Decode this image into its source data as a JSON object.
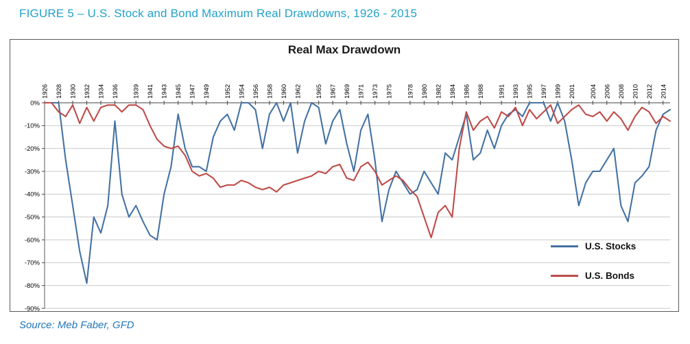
{
  "figure": {
    "caption": "FIGURE 5 – U.S. Stock and Bond Maximum Real Drawdowns, 1926 - 2015"
  },
  "source": {
    "text": "Source: Meb Faber, GFD"
  },
  "chart": {
    "title": "Real Max Drawdown"
  },
  "chart_data": {
    "type": "line",
    "title": "Real Max Drawdown",
    "xlabel": "",
    "ylabel": "",
    "x_range": [
      1926,
      2015
    ],
    "y_range": [
      -90,
      0
    ],
    "grid": "horizontal",
    "legend_position": "inside-lower-right",
    "y_tick_labels": [
      "0%",
      "-10%",
      "-20%",
      "-30%",
      "-40%",
      "-50%",
      "-60%",
      "-70%",
      "-80%",
      "-90%"
    ],
    "y_tick_values": [
      0,
      -10,
      -20,
      -30,
      -40,
      -50,
      -60,
      -70,
      -80,
      -90
    ],
    "x_tick_years": [
      1926,
      1928,
      1930,
      1932,
      1934,
      1936,
      1939,
      1941,
      1943,
      1945,
      1947,
      1949,
      1952,
      1954,
      1956,
      1958,
      1960,
      1962,
      1965,
      1967,
      1969,
      1971,
      1973,
      1975,
      1978,
      1980,
      1982,
      1984,
      1986,
      1988,
      1991,
      1993,
      1995,
      1997,
      1999,
      2001,
      2004,
      2006,
      2008,
      2010,
      2012,
      2014
    ],
    "years": [
      1926,
      1927,
      1928,
      1929,
      1930,
      1931,
      1932,
      1933,
      1934,
      1935,
      1936,
      1937,
      1938,
      1939,
      1940,
      1941,
      1942,
      1943,
      1944,
      1945,
      1946,
      1947,
      1948,
      1949,
      1950,
      1951,
      1952,
      1953,
      1954,
      1955,
      1956,
      1957,
      1958,
      1959,
      1960,
      1961,
      1962,
      1963,
      1964,
      1965,
      1966,
      1967,
      1968,
      1969,
      1970,
      1971,
      1972,
      1973,
      1974,
      1975,
      1976,
      1977,
      1978,
      1979,
      1980,
      1981,
      1982,
      1983,
      1984,
      1985,
      1986,
      1987,
      1988,
      1989,
      1990,
      1991,
      1992,
      1993,
      1994,
      1995,
      1996,
      1997,
      1998,
      1999,
      2000,
      2001,
      2002,
      2003,
      2004,
      2005,
      2006,
      2007,
      2008,
      2009,
      2010,
      2011,
      2012,
      2013,
      2014,
      2015
    ],
    "series": [
      {
        "name": "U.S. Stocks",
        "color": "#4472A4",
        "values": [
          0,
          0,
          0,
          -25,
          -45,
          -65,
          -79,
          -50,
          -57,
          -45,
          -8,
          -40,
          -50,
          -45,
          -52,
          -58,
          -60,
          -40,
          -28,
          -5,
          -20,
          -28,
          -28,
          -30,
          -15,
          -8,
          -5,
          -12,
          0,
          0,
          -3,
          -20,
          -5,
          0,
          -8,
          0,
          -22,
          -8,
          0,
          -2,
          -18,
          -8,
          -3,
          -18,
          -30,
          -12,
          -5,
          -25,
          -52,
          -38,
          -30,
          -35,
          -40,
          -38,
          -30,
          -35,
          -40,
          -22,
          -25,
          -15,
          -5,
          -25,
          -22,
          -12,
          -20,
          -10,
          -5,
          -3,
          -6,
          0,
          0,
          0,
          -8,
          0,
          -8,
          -25,
          -45,
          -35,
          -30,
          -30,
          -25,
          -20,
          -45,
          -52,
          -35,
          -32,
          -28,
          -12,
          -5,
          -3
        ]
      },
      {
        "name": "U.S. Bonds",
        "color": "#BE4B48",
        "values": [
          0,
          0,
          -4,
          -6,
          -1,
          -9,
          -2,
          -8,
          -2,
          -1,
          -1,
          -4,
          -1,
          -1,
          -3,
          -10,
          -16,
          -19,
          -20,
          -19,
          -23,
          -30,
          -32,
          -31,
          -33,
          -37,
          -36,
          -36,
          -34,
          -35,
          -37,
          -38,
          -37,
          -39,
          -36,
          -35,
          -34,
          -33,
          -32,
          -30,
          -31,
          -28,
          -27,
          -33,
          -34,
          -28,
          -26,
          -30,
          -36,
          -34,
          -32,
          -34,
          -38,
          -41,
          -50,
          -59,
          -48,
          -45,
          -50,
          -20,
          -4,
          -12,
          -8,
          -6,
          -11,
          -4,
          -6,
          -2,
          -10,
          -3,
          -7,
          -4,
          -1,
          -9,
          -6,
          -3,
          -1,
          -5,
          -6,
          -4,
          -8,
          -4,
          -7,
          -12,
          -6,
          -2,
          -4,
          -9,
          -6,
          -8
        ]
      }
    ]
  }
}
